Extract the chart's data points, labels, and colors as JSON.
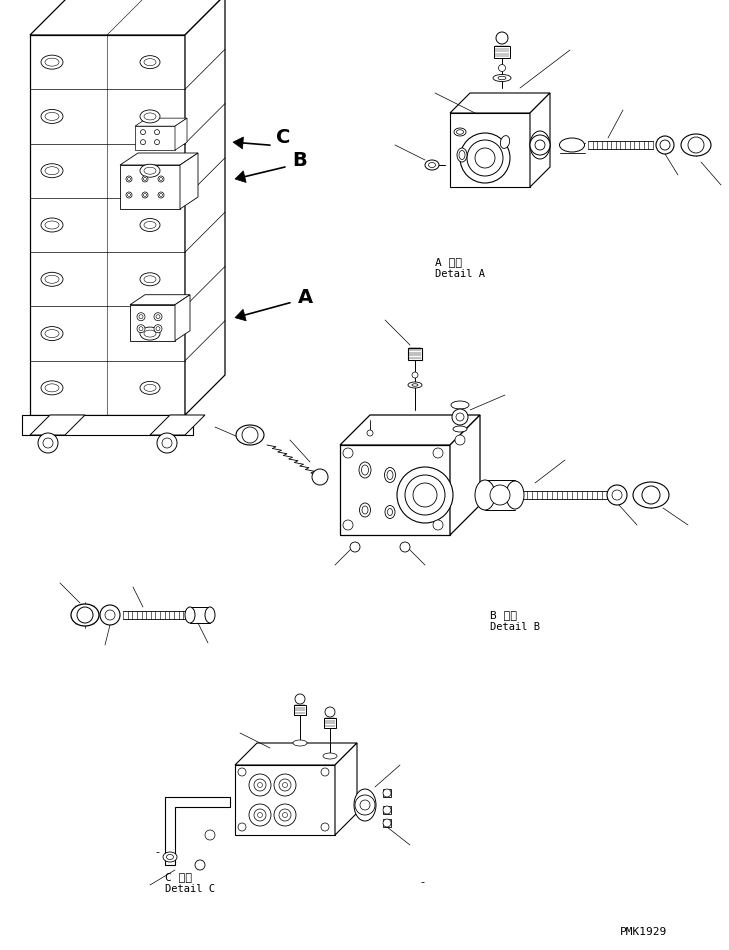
{
  "background_color": "#ffffff",
  "line_color": "#000000",
  "figsize": [
    7.29,
    9.5
  ],
  "dpi": 100,
  "label_A": "A",
  "label_B": "B",
  "label_C": "C",
  "detail_A_jp": "A 詳細",
  "detail_A_en": "Detail A",
  "detail_B_jp": "B 詳細",
  "detail_B_en": "Detail B",
  "detail_C_jp": "C 詳細",
  "detail_C_en": "Detail C",
  "part_number": "PMK1929",
  "lw": 0.7
}
